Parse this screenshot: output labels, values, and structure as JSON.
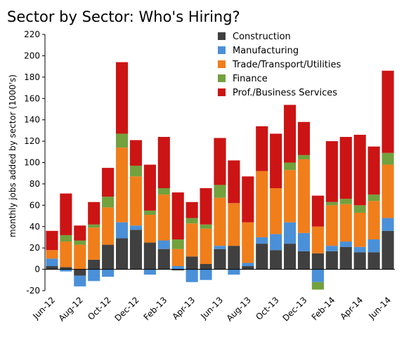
{
  "chart_data": {
    "type": "bar",
    "stacked": true,
    "title": "Sector by Sector: Who's Hiring?",
    "xlabel": "",
    "ylabel": "monthly jobs added by sector (1000's)",
    "ylim": [
      -20,
      220
    ],
    "yticks": [
      -20,
      0,
      20,
      40,
      60,
      80,
      100,
      120,
      140,
      160,
      180,
      200,
      220
    ],
    "grid": false,
    "legend": "top-right",
    "categories": [
      "Jun-12",
      "Jul-12",
      "Aug-12",
      "Sep-12",
      "Oct-12",
      "Nov-12",
      "Dec-12",
      "Jan-13",
      "Feb-13",
      "Mar-13",
      "Apr-13",
      "May-13",
      "Jun-13",
      "Jul-13",
      "Aug-13",
      "Sep-13",
      "Oct-13",
      "Nov-13",
      "Dec-13",
      "Jan-14",
      "Feb-14",
      "Mar-14",
      "Apr-14",
      "May-14",
      "Jun-14"
    ],
    "xtick_labels": [
      "Jun-12",
      "Aug-12",
      "Oct-12",
      "Dec-12",
      "Feb-13",
      "Apr-13",
      "Jun-13",
      "Aug-13",
      "Oct-13",
      "Dec-13",
      "Feb-14",
      "Apr-14",
      "Jun-14"
    ],
    "series": [
      {
        "name": "Construction",
        "color": "#404040",
        "values": [
          3,
          2,
          -6,
          9,
          23,
          29,
          37,
          25,
          19,
          -1,
          12,
          5,
          19,
          22,
          3,
          24,
          18,
          24,
          17,
          15,
          17,
          21,
          16,
          16,
          36
        ]
      },
      {
        "name": "Manufacturing",
        "color": "#4a90d9",
        "values": [
          7,
          -2,
          -10,
          -11,
          -7,
          15,
          4,
          -5,
          8,
          3,
          -12,
          -10,
          3,
          -5,
          3,
          6,
          15,
          20,
          17,
          -12,
          5,
          5,
          5,
          12,
          12
        ]
      },
      {
        "name": "Trade/Transport/Utilities",
        "color": "#f07e1b",
        "values": [
          8,
          24,
          23,
          30,
          35,
          70,
          46,
          26,
          43,
          16,
          31,
          33,
          45,
          40,
          38,
          62,
          43,
          49,
          69,
          25,
          38,
          35,
          32,
          36,
          50
        ]
      },
      {
        "name": "Finance",
        "color": "#72a13d",
        "values": [
          0,
          6,
          4,
          3,
          10,
          13,
          10,
          4,
          6,
          9,
          5,
          4,
          12,
          0,
          0,
          0,
          0,
          7,
          4,
          -7,
          3,
          5,
          7,
          6,
          11
        ]
      },
      {
        "name": "Prof./Business Services",
        "color": "#cc1414",
        "values": [
          18,
          39,
          14,
          21,
          27,
          67,
          24,
          43,
          48,
          44,
          15,
          34,
          44,
          40,
          43,
          42,
          51,
          54,
          31,
          29,
          57,
          58,
          66,
          45,
          77
        ]
      }
    ]
  }
}
